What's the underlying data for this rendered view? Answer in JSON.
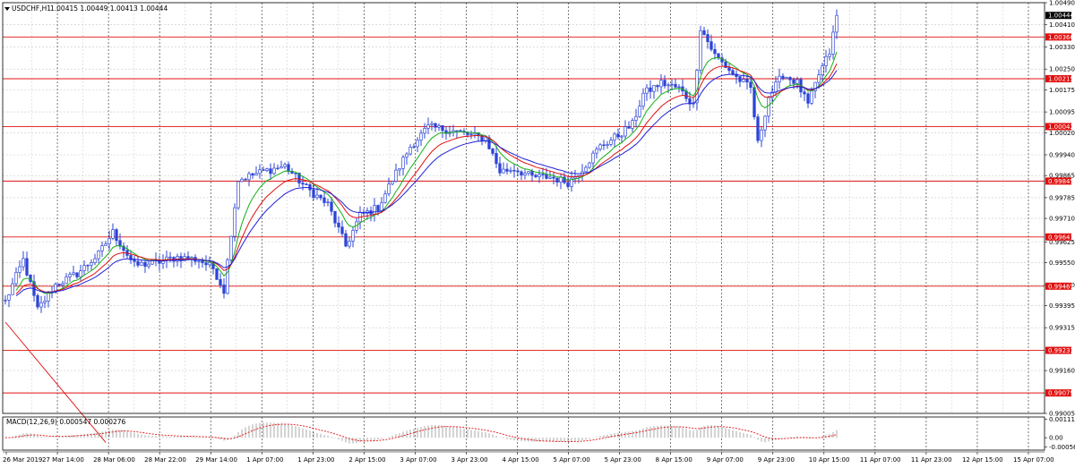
{
  "window": {
    "symbol_label": "USDCHF,H1",
    "ohlc_label": "1.00415 1.00449 1.00413 1.00444"
  },
  "colors": {
    "background": "#ffffff",
    "grid": "#c8c8c8",
    "vgrid_dark": "#222222",
    "candles": "#2c44d6",
    "level_lines": "#e01010",
    "ma_fast": "#13b013",
    "ma_mid": "#e01010",
    "ma_slow": "#2020d8",
    "macd_hist": "#a8a8a8",
    "macd_signal": "#e01010",
    "current_price_badge": "#000000",
    "level_badge": "#e01010"
  },
  "chart_data": {
    "type": "line",
    "subtype": "candlestick-with-indicators",
    "symbol": "USDCHF",
    "timeframe": "H1",
    "price_axis": {
      "min": 0.99005,
      "max": 1.0049,
      "ticks": [
        "1.00490",
        "1.00410",
        "1.00330",
        "1.00250",
        "1.00175",
        "1.00095",
        "1.00020",
        "0.99940",
        "0.99865",
        "0.99785",
        "0.99710",
        "0.99625",
        "0.99550",
        "0.99470",
        "0.99395",
        "0.99315",
        "0.99160",
        "0.99005"
      ],
      "tick_values": [
        1.0049,
        1.0041,
        1.0033,
        1.0025,
        1.00175,
        1.00095,
        1.0002,
        0.9994,
        0.99865,
        0.99785,
        0.9971,
        0.99625,
        0.9955,
        0.9947,
        0.99395,
        0.99315,
        0.9916,
        0.99005
      ]
    },
    "current_price": "1.00444",
    "level_lines": [
      "1.00366",
      "1.00215",
      "1.00042",
      "0.99845",
      "0.99643",
      "0.99465",
      "0.99233",
      "0.99079"
    ],
    "time_axis": {
      "labels": [
        "26 Mar 2019",
        "27 Mar 14:00",
        "28 Mar 06:00",
        "28 Mar 22:00",
        "29 Mar 14:00",
        "1 Apr 07:00",
        "1 Apr 23:00",
        "2 Apr 15:00",
        "3 Apr 07:00",
        "3 Apr 23:00",
        "4 Apr 15:00",
        "5 Apr 07:00",
        "5 Apr 23:00",
        "8 Apr 15:00",
        "9 Apr 07:00",
        "9 Apr 23:00",
        "10 Apr 15:00",
        "11 Apr 07:00",
        "11 Apr 23:00",
        "12 Apr 15:00",
        "15 Apr 07:00"
      ]
    },
    "price_path": {
      "bars_total": 235,
      "anchors": [
        [
          0,
          0.9941
        ],
        [
          5,
          0.9956
        ],
        [
          9,
          0.9938
        ],
        [
          14,
          0.9947
        ],
        [
          20,
          0.9951
        ],
        [
          26,
          0.9958
        ],
        [
          30,
          0.9966
        ],
        [
          36,
          0.9954
        ],
        [
          42,
          0.9955
        ],
        [
          48,
          0.9957
        ],
        [
          54,
          0.9956
        ],
        [
          58,
          0.9953
        ],
        [
          61,
          0.9945
        ],
        [
          63,
          0.9966
        ],
        [
          65,
          0.9985
        ],
        [
          72,
          0.9988
        ],
        [
          78,
          0.999
        ],
        [
          84,
          0.9982
        ],
        [
          90,
          0.9976
        ],
        [
          95,
          0.9961
        ],
        [
          99,
          0.9972
        ],
        [
          104,
          0.9975
        ],
        [
          108,
          0.9985
        ],
        [
          113,
          0.9997
        ],
        [
          118,
          1.0004
        ],
        [
          124,
          1.0003
        ],
        [
          130,
          1.0001
        ],
        [
          134,
          1.0
        ],
        [
          138,
          0.9988
        ],
        [
          142,
          0.9989
        ],
        [
          147,
          0.9986
        ],
        [
          152,
          0.9986
        ],
        [
          157,
          0.9984
        ],
        [
          161,
          0.9989
        ],
        [
          166,
          0.9997
        ],
        [
          171,
          1.0001
        ],
        [
          175,
          1.0005
        ],
        [
          178,
          1.0016
        ],
        [
          183,
          1.002
        ],
        [
          188,
          1.0018
        ],
        [
          192,
          1.0012
        ],
        [
          194,
          1.004
        ],
        [
          198,
          1.003
        ],
        [
          204,
          1.0022
        ],
        [
          208,
          1.0018
        ],
        [
          210,
          0.9998
        ],
        [
          213,
          1.0015
        ],
        [
          217,
          1.0023
        ],
        [
          221,
          1.002
        ],
        [
          224,
          1.0012
        ],
        [
          227,
          1.0023
        ],
        [
          230,
          1.0031
        ],
        [
          232,
          1.0044
        ]
      ]
    },
    "moving_averages": [
      {
        "color": "#13b013",
        "period": 8
      },
      {
        "color": "#e01010",
        "period": 14
      },
      {
        "color": "#2020d8",
        "period": 21
      }
    ],
    "macd": {
      "label": "MACD(12,26,9) 0.000547 0.000276",
      "axis_ticks": [
        "0.001112",
        "0.00",
        "-0.000561"
      ],
      "axis_values": [
        0.001112,
        0.0,
        -0.000561
      ],
      "min": -0.00075,
      "max": 0.00125,
      "fast": 12,
      "slow": 26,
      "signal": 9
    },
    "trend_line": {
      "from": [
        0,
        0.99335
      ],
      "to": [
        28,
        0.989
      ]
    }
  }
}
